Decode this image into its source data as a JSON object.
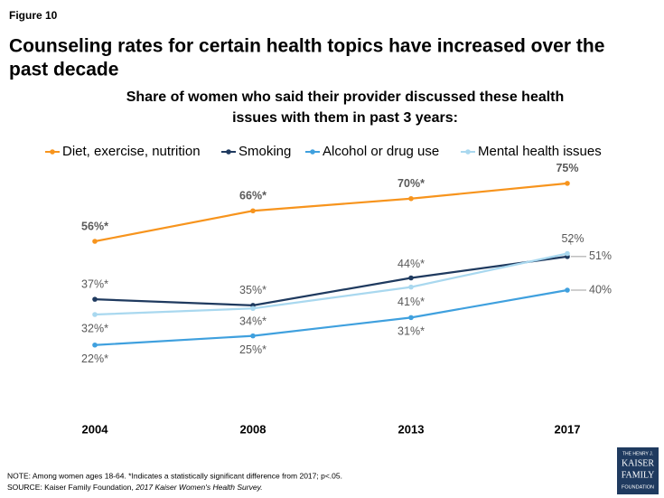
{
  "chart_data": {
    "type": "line",
    "figure_label": "Figure 10",
    "title": [
      "Counseling rates for certain health topics have increased over the",
      "past decade"
    ],
    "subtitle": [
      "Share of women who said their provider discussed these health",
      "issues with them in past 3 years:"
    ],
    "categories": [
      "2004",
      "2008",
      "2013",
      "2017"
    ],
    "ylim": [
      0,
      80
    ],
    "series": [
      {
        "name": "Diet, exercise, nutrition",
        "color": "#f7941d",
        "values": [
          56,
          66,
          70,
          75
        ],
        "value_labels": [
          "56%*",
          "66%*",
          "70%*",
          "75%"
        ]
      },
      {
        "name": "Smoking",
        "color": "#1f3a5f",
        "values": [
          37,
          35,
          44,
          51
        ],
        "value_labels": [
          "37%*",
          "35%*",
          "44%*",
          "51%"
        ]
      },
      {
        "name": "Alcohol or drug use",
        "color": "#3fa0de",
        "values": [
          22,
          25,
          31,
          40
        ],
        "value_labels": [
          "22%*",
          "25%*",
          "31%*",
          "40%"
        ]
      },
      {
        "name": "Mental health issues",
        "color": "#a9d8ef",
        "values": [
          32,
          34,
          41,
          52
        ],
        "value_labels": [
          "32%*",
          "34%*",
          "41%*",
          "52%"
        ]
      }
    ],
    "note": "NOTE: Among women ages 18-64. *Indicates a statistically significant difference from 2017; p<.05.",
    "source": "SOURCE: Kaiser Family Foundation, ",
    "source_title": "2017 Kaiser Women's Health Survey.",
    "logo": [
      "THE HENRY J.",
      "KAISER",
      "FAMILY",
      "FOUNDATION"
    ]
  }
}
